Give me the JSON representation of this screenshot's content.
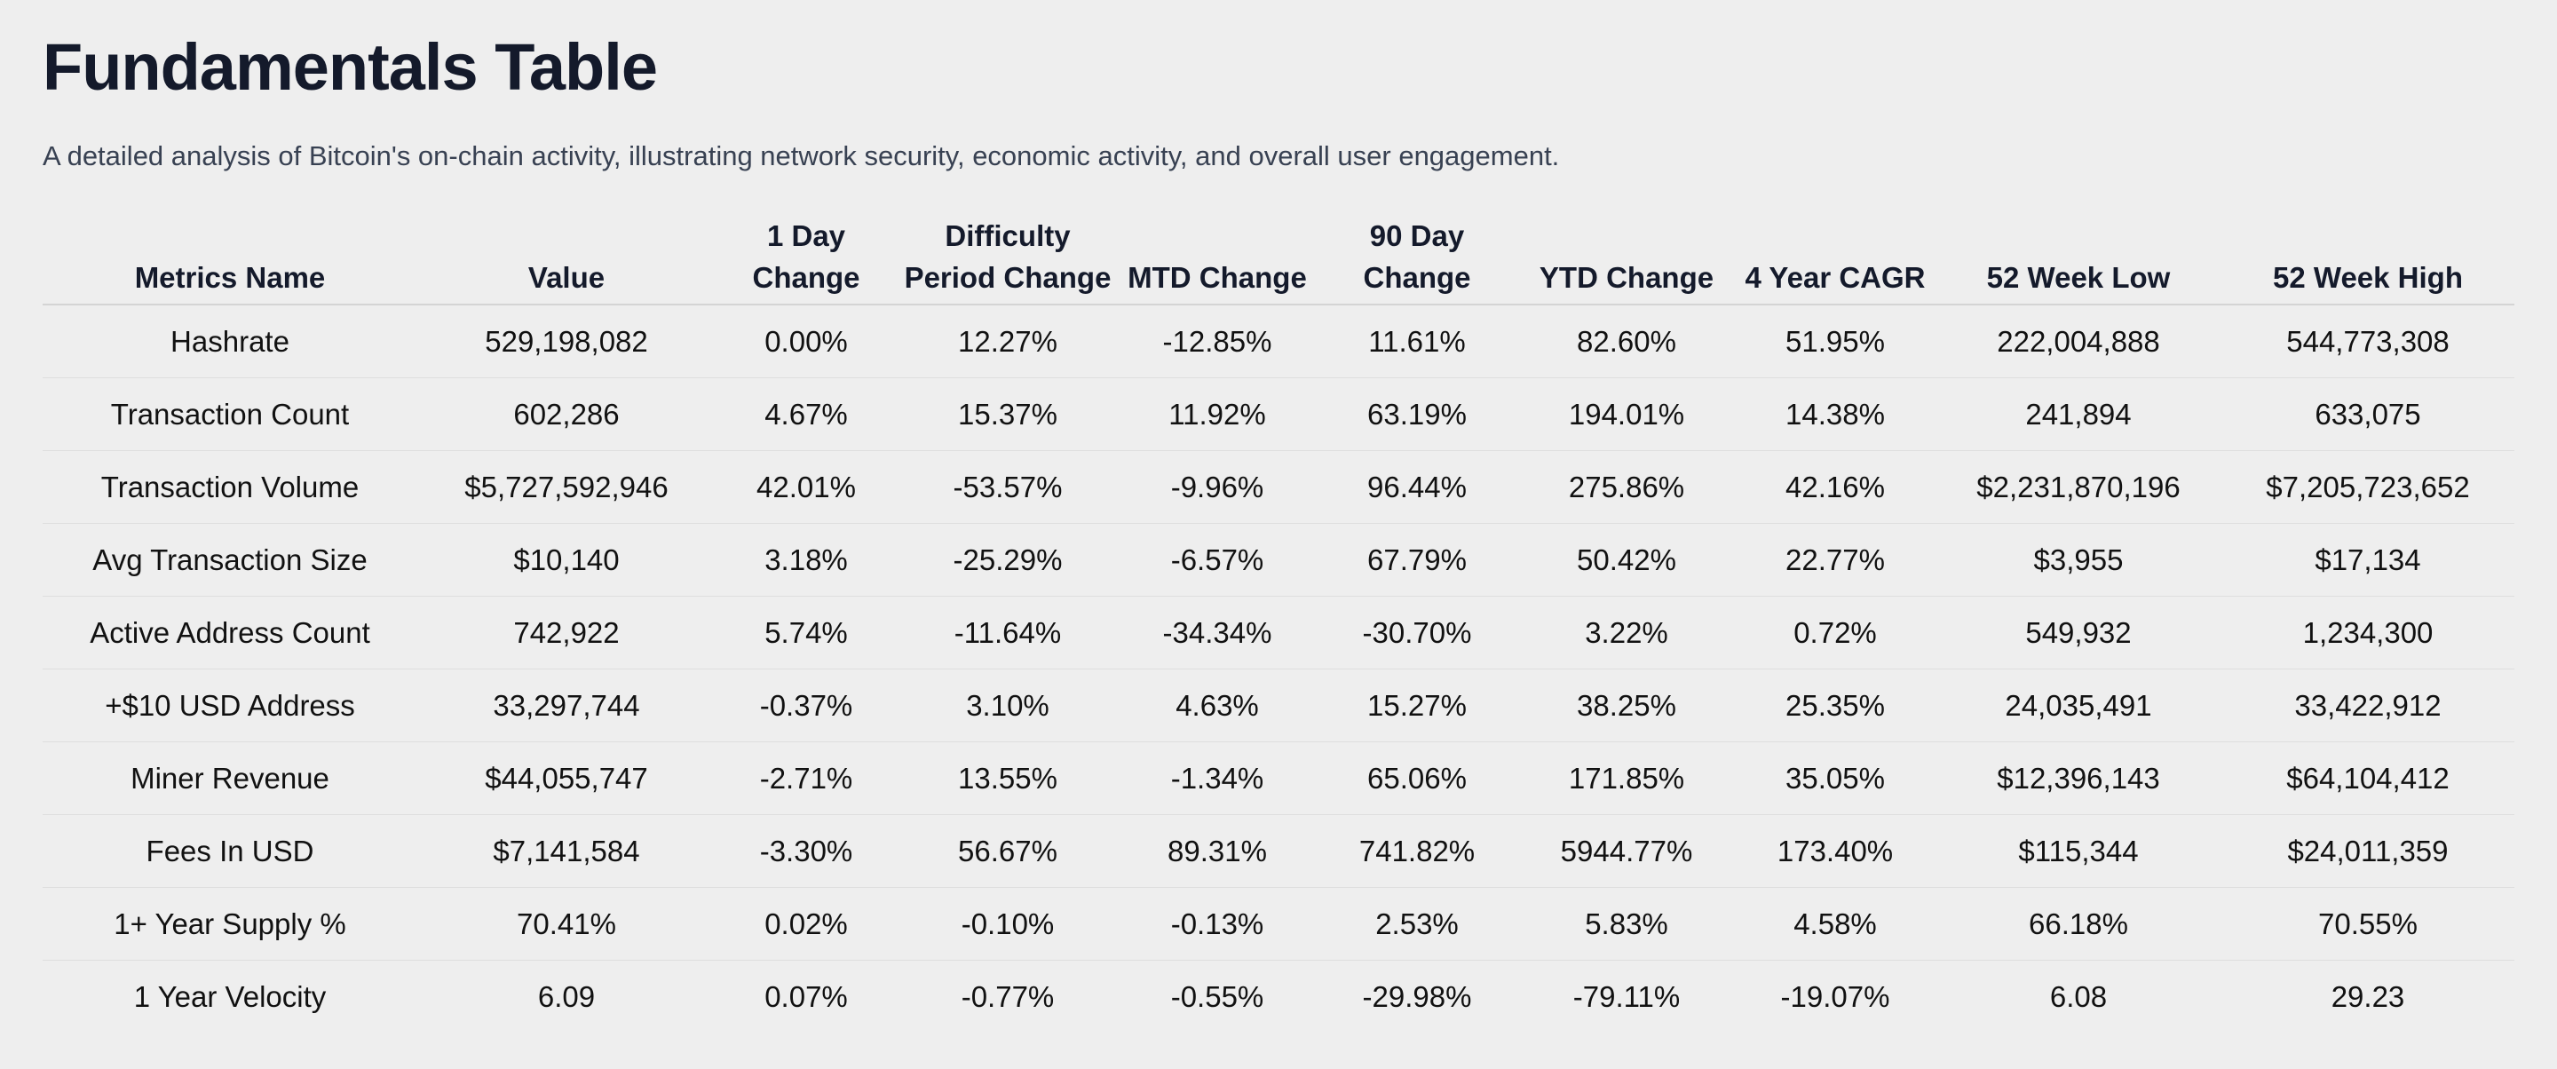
{
  "header": {
    "title": "Fundamentals Table",
    "subtitle": "A detailed analysis of Bitcoin's on-chain activity, illustrating network security, economic activity, and overall user engagement."
  },
  "colors": {
    "positive": "#1a7f12",
    "negative": "#e01010",
    "neutral": "#111111"
  },
  "table": {
    "columns": [
      "Metrics Name",
      "Value",
      "1 Day Change",
      "Difficulty Period Change",
      "MTD Change",
      "90 Day Change",
      "YTD Change",
      "4 Year CAGR",
      "52 Week Low",
      "52 Week High"
    ],
    "rows": [
      [
        "Hashrate",
        "529,198,082",
        "0.00%",
        "12.27%",
        "-12.85%",
        "11.61%",
        "82.60%",
        "51.95%",
        "222,004,888",
        "544,773,308"
      ],
      [
        "Transaction Count",
        "602,286",
        "4.67%",
        "15.37%",
        "11.92%",
        "63.19%",
        "194.01%",
        "14.38%",
        "241,894",
        "633,075"
      ],
      [
        "Transaction Volume",
        "$5,727,592,946",
        "42.01%",
        "-53.57%",
        "-9.96%",
        "96.44%",
        "275.86%",
        "42.16%",
        "$2,231,870,196",
        "$7,205,723,652"
      ],
      [
        "Avg Transaction Size",
        "$10,140",
        "3.18%",
        "-25.29%",
        "-6.57%",
        "67.79%",
        "50.42%",
        "22.77%",
        "$3,955",
        "$17,134"
      ],
      [
        "Active Address Count",
        "742,922",
        "5.74%",
        "-11.64%",
        "-34.34%",
        "-30.70%",
        "3.22%",
        "0.72%",
        "549,932",
        "1,234,300"
      ],
      [
        "+$10 USD Address",
        "33,297,744",
        "-0.37%",
        "3.10%",
        "4.63%",
        "15.27%",
        "38.25%",
        "25.35%",
        "24,035,491",
        "33,422,912"
      ],
      [
        "Miner Revenue",
        "$44,055,747",
        "-2.71%",
        "13.55%",
        "-1.34%",
        "65.06%",
        "171.85%",
        "35.05%",
        "$12,396,143",
        "$64,104,412"
      ],
      [
        "Fees In USD",
        "$7,141,584",
        "-3.30%",
        "56.67%",
        "89.31%",
        "741.82%",
        "5944.77%",
        "173.40%",
        "$115,344",
        "$24,011,359"
      ],
      [
        "1+ Year Supply %",
        "70.41%",
        "0.02%",
        "-0.10%",
        "-0.13%",
        "2.53%",
        "5.83%",
        "4.58%",
        "66.18%",
        "70.55%"
      ],
      [
        "1 Year Velocity",
        "6.09",
        "0.07%",
        "-0.77%",
        "-0.55%",
        "-29.98%",
        "-79.11%",
        "-19.07%",
        "6.08",
        "29.23"
      ]
    ]
  }
}
